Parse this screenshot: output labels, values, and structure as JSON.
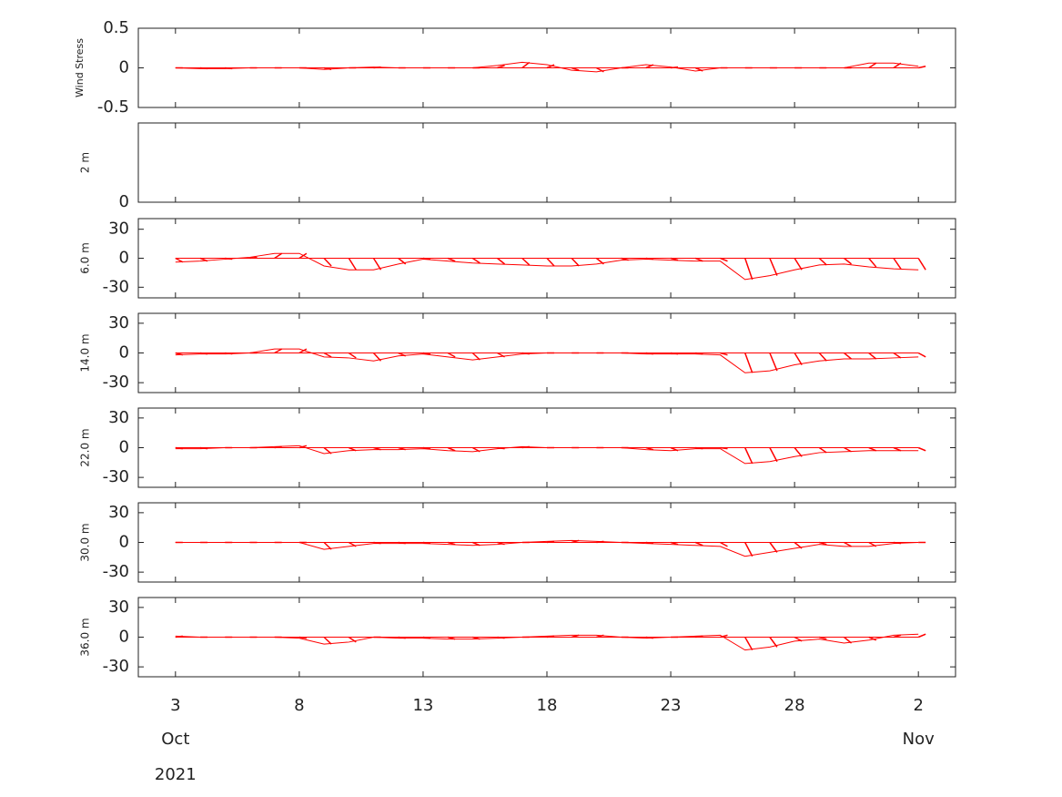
{
  "chart_data": [
    {
      "type": "stick",
      "ylabel": "Wind Stress",
      "color": "#ff0000",
      "x": [
        "2021-10-03",
        "2021-10-04",
        "2021-10-05",
        "2021-10-06",
        "2021-10-07",
        "2021-10-08",
        "2021-10-09",
        "2021-10-10",
        "2021-10-11",
        "2021-10-12",
        "2021-10-13",
        "2021-10-14",
        "2021-10-15",
        "2021-10-16",
        "2021-10-17",
        "2021-10-18",
        "2021-10-19",
        "2021-10-20",
        "2021-10-21",
        "2021-10-22",
        "2021-10-23",
        "2021-10-24",
        "2021-10-25",
        "2021-10-26",
        "2021-10-27",
        "2021-10-28",
        "2021-10-29",
        "2021-10-30",
        "2021-10-31",
        "2021-11-01",
        "2021-11-02"
      ],
      "values": [
        0,
        -0.01,
        -0.01,
        0,
        0,
        0,
        -0.02,
        0,
        0.01,
        0,
        0,
        0,
        0,
        0.03,
        0.07,
        0.04,
        -0.03,
        -0.05,
        0,
        0.04,
        0.01,
        -0.04,
        0,
        0,
        0,
        0,
        0,
        0,
        0.06,
        0.06,
        0.02
      ],
      "xlim": [
        "2021-10-01T12:00",
        "2021-11-03T12:00"
      ],
      "ylim": [
        -0.5,
        0.5
      ],
      "yticks": [
        -0.5,
        0,
        0.5
      ]
    },
    {
      "type": "stick",
      "ylabel": "2 m",
      "ylim": [
        0,
        1
      ],
      "yticks": [
        0
      ]
    },
    {
      "type": "stick",
      "ylabel": "6.0 m",
      "color": "#ff0000",
      "x": [
        "2021-10-03",
        "2021-10-04",
        "2021-10-05",
        "2021-10-06",
        "2021-10-07",
        "2021-10-08",
        "2021-10-09",
        "2021-10-10",
        "2021-10-11",
        "2021-10-12",
        "2021-10-13",
        "2021-10-14",
        "2021-10-15",
        "2021-10-16",
        "2021-10-17",
        "2021-10-18",
        "2021-10-19",
        "2021-10-20",
        "2021-10-21",
        "2021-10-22",
        "2021-10-23",
        "2021-10-24",
        "2021-10-25",
        "2021-10-26",
        "2021-10-27",
        "2021-10-28",
        "2021-10-29",
        "2021-10-30",
        "2021-10-31",
        "2021-11-01",
        "2021-11-02"
      ],
      "values": [
        -4,
        -3,
        -1,
        1,
        5,
        5,
        -8,
        -12,
        -12,
        -6,
        -1,
        -3,
        -5,
        -6,
        -7,
        -8,
        -8,
        -6,
        -2,
        -1,
        -2,
        -3,
        -3,
        -22,
        -18,
        -12,
        -7,
        -6,
        -9,
        -11,
        -12
      ],
      "xlim": [
        "2021-10-01T12:00",
        "2021-11-03T12:00"
      ],
      "ylim": [
        -41,
        41
      ],
      "yticks": [
        -30,
        0,
        30
      ]
    },
    {
      "type": "stick",
      "ylabel": "14.0 m",
      "color": "#ff0000",
      "x": [
        "2021-10-03",
        "2021-10-04",
        "2021-10-05",
        "2021-10-06",
        "2021-10-07",
        "2021-10-08",
        "2021-10-09",
        "2021-10-10",
        "2021-10-11",
        "2021-10-12",
        "2021-10-13",
        "2021-10-14",
        "2021-10-15",
        "2021-10-16",
        "2021-10-17",
        "2021-10-18",
        "2021-10-19",
        "2021-10-20",
        "2021-10-21",
        "2021-10-22",
        "2021-10-23",
        "2021-10-24",
        "2021-10-25",
        "2021-10-26",
        "2021-10-27",
        "2021-10-28",
        "2021-10-29",
        "2021-10-30",
        "2021-10-31",
        "2021-11-01",
        "2021-11-02"
      ],
      "values": [
        -2,
        -1,
        -1,
        0,
        4,
        4,
        -4,
        -5,
        -8,
        -3,
        -1,
        -4,
        -7,
        -4,
        -1,
        0,
        0,
        0,
        0,
        -1,
        -1,
        -1,
        -2,
        -20,
        -18,
        -12,
        -8,
        -6,
        -6,
        -5,
        -4
      ],
      "xlim": [
        "2021-10-01T12:00",
        "2021-11-03T12:00"
      ],
      "ylim": [
        -40,
        40
      ],
      "yticks": [
        -30,
        0,
        30
      ]
    },
    {
      "type": "stick",
      "ylabel": "22.0 m",
      "color": "#ff0000",
      "x": [
        "2021-10-03",
        "2021-10-04",
        "2021-10-05",
        "2021-10-06",
        "2021-10-07",
        "2021-10-08",
        "2021-10-09",
        "2021-10-10",
        "2021-10-11",
        "2021-10-12",
        "2021-10-13",
        "2021-10-14",
        "2021-10-15",
        "2021-10-16",
        "2021-10-17",
        "2021-10-18",
        "2021-10-19",
        "2021-10-20",
        "2021-10-21",
        "2021-10-22",
        "2021-10-23",
        "2021-10-24",
        "2021-10-25",
        "2021-10-26",
        "2021-10-27",
        "2021-10-28",
        "2021-10-29",
        "2021-10-30",
        "2021-10-31",
        "2021-11-01",
        "2021-11-02"
      ],
      "values": [
        -1,
        -1,
        0,
        0,
        1,
        2,
        -6,
        -3,
        -2,
        -2,
        -1,
        -3,
        -4,
        -1,
        1,
        0,
        0,
        0,
        0,
        -2,
        -3,
        -1,
        -1,
        -16,
        -14,
        -9,
        -5,
        -4,
        -3,
        -3,
        -3
      ],
      "xlim": [
        "2021-10-01T12:00",
        "2021-11-03T12:00"
      ],
      "ylim": [
        -40,
        40
      ],
      "yticks": [
        -30,
        0,
        30
      ]
    },
    {
      "type": "stick",
      "ylabel": "30.0 m",
      "color": "#ff0000",
      "x": [
        "2021-10-03",
        "2021-10-04",
        "2021-10-05",
        "2021-10-06",
        "2021-10-07",
        "2021-10-08",
        "2021-10-09",
        "2021-10-10",
        "2021-10-11",
        "2021-10-12",
        "2021-10-13",
        "2021-10-14",
        "2021-10-15",
        "2021-10-16",
        "2021-10-17",
        "2021-10-18",
        "2021-10-19",
        "2021-10-20",
        "2021-10-21",
        "2021-10-22",
        "2021-10-23",
        "2021-10-24",
        "2021-10-25",
        "2021-10-26",
        "2021-10-27",
        "2021-10-28",
        "2021-10-29",
        "2021-10-30",
        "2021-10-31",
        "2021-11-01",
        "2021-11-02"
      ],
      "values": [
        0,
        0,
        0,
        0,
        0,
        0,
        -7,
        -4,
        -1,
        -1,
        -1,
        -2,
        -3,
        -2,
        0,
        1,
        2,
        1,
        0,
        -1,
        -2,
        -3,
        -4,
        -14,
        -10,
        -6,
        -2,
        -4,
        -4,
        -1,
        0
      ],
      "xlim": [
        "2021-10-01T12:00",
        "2021-11-03T12:00"
      ],
      "ylim": [
        -40,
        40
      ],
      "yticks": [
        -30,
        0,
        30
      ]
    },
    {
      "type": "stick",
      "ylabel": "36.0 m",
      "color": "#ff0000",
      "x": [
        "2021-10-03",
        "2021-10-04",
        "2021-10-05",
        "2021-10-06",
        "2021-10-07",
        "2021-10-08",
        "2021-10-09",
        "2021-10-10",
        "2021-10-11",
        "2021-10-12",
        "2021-10-13",
        "2021-10-14",
        "2021-10-15",
        "2021-10-16",
        "2021-10-17",
        "2021-10-18",
        "2021-10-19",
        "2021-10-20",
        "2021-10-21",
        "2021-10-22",
        "2021-10-23",
        "2021-10-24",
        "2021-10-25",
        "2021-10-26",
        "2021-10-27",
        "2021-10-28",
        "2021-10-29",
        "2021-10-30",
        "2021-10-31",
        "2021-11-01",
        "2021-11-02"
      ],
      "values": [
        1,
        0,
        0,
        0,
        0,
        -1,
        -7,
        -5,
        0,
        -1,
        -1,
        -2,
        -2,
        -1,
        0,
        1,
        2,
        2,
        0,
        -1,
        0,
        1,
        2,
        -13,
        -10,
        -4,
        -2,
        -6,
        -3,
        2,
        3
      ],
      "xlim": [
        "2021-10-01T12:00",
        "2021-11-03T12:00"
      ],
      "ylim": [
        -40,
        40
      ],
      "yticks": [
        -30,
        0,
        30
      ],
      "xticks": [
        {
          "value": "2021-10-03",
          "label": "3"
        },
        {
          "value": "2021-10-08",
          "label": "8"
        },
        {
          "value": "2021-10-13",
          "label": "13"
        },
        {
          "value": "2021-10-18",
          "label": "18"
        },
        {
          "value": "2021-10-23",
          "label": "23"
        },
        {
          "value": "2021-10-28",
          "label": "28"
        },
        {
          "value": "2021-11-02",
          "label": "2"
        }
      ],
      "xticks_month": [
        {
          "value": "2021-10-03",
          "label": "Oct"
        },
        {
          "value": "2021-11-02",
          "label": "Nov"
        }
      ],
      "xtick_year": {
        "value": "2021-10-03",
        "label": "2021"
      }
    }
  ]
}
